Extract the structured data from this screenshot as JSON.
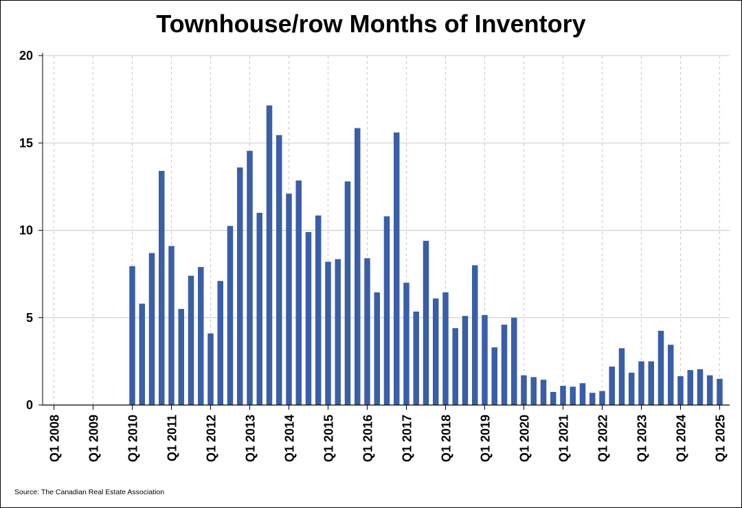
{
  "chart_data": {
    "type": "bar",
    "title": "Townhouse/row Months of Inventory",
    "source": "Source: The Canadian Real Estate Association",
    "xlabel": "",
    "ylabel": "",
    "ylim": [
      0,
      20
    ],
    "y_ticks": [
      "0",
      "5",
      "10",
      "15",
      "20"
    ],
    "x_tick_labels": [
      "Q1 2008",
      "Q1 2009",
      "Q1 2010",
      "Q1 2011",
      "Q1 2012",
      "Q1 2013",
      "Q1 2014",
      "Q1 2015",
      "Q1 2016",
      "Q1 2017",
      "Q1 2018",
      "Q1 2019",
      "Q1 2020",
      "Q1 2021",
      "Q1 2022",
      "Q1 2023",
      "Q1 2024",
      "Q1 2025"
    ],
    "grid": "horizontal solid, vertical dashed",
    "bar_color": "#3a5ea8",
    "first_bar_period": "Q1 2010",
    "values": [
      7.95,
      5.8,
      8.7,
      13.4,
      9.1,
      5.5,
      7.4,
      7.9,
      4.1,
      7.1,
      10.25,
      13.6,
      14.55,
      11.0,
      17.15,
      15.45,
      12.1,
      12.85,
      9.9,
      10.85,
      8.2,
      8.35,
      12.8,
      15.85,
      8.4,
      6.45,
      10.8,
      15.6,
      7.0,
      5.35,
      9.4,
      6.1,
      6.45,
      4.4,
      5.1,
      8.0,
      5.15,
      3.3,
      4.6,
      5.0,
      1.7,
      1.6,
      1.45,
      0.75,
      1.1,
      1.05,
      1.25,
      0.7,
      0.8,
      2.2,
      3.25,
      1.85,
      2.5,
      2.5,
      4.25,
      3.45,
      1.65,
      2.0,
      2.05,
      1.7,
      1.5
    ]
  }
}
